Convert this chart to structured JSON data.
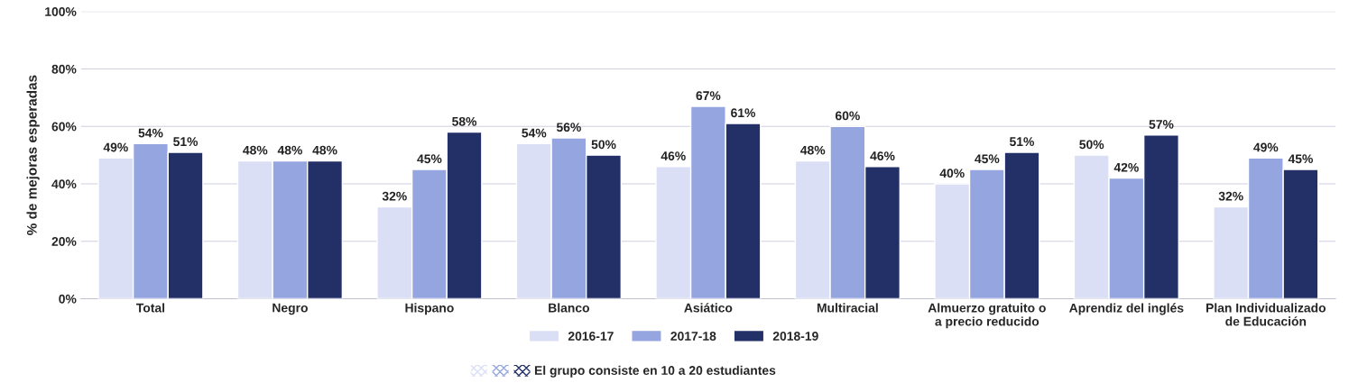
{
  "chart_data": {
    "type": "bar",
    "ylabel": "% de mejoras esperadas",
    "categories": [
      "Total",
      "Negro",
      "Hispano",
      "Blanco",
      "Asiático",
      "Multiracial",
      "Almuerzo gratuito o\na precio reducido",
      "Aprendiz del inglés",
      "Plan Individualizado\nde Educación"
    ],
    "series": [
      {
        "name": "2016-17",
        "color": "#dadff5",
        "values": [
          49,
          48,
          32,
          54,
          46,
          48,
          40,
          50,
          32
        ],
        "value_labels": [
          "49%",
          "48%",
          "32%",
          "54%",
          "46%",
          "48%",
          "40%",
          "50%",
          "32%"
        ]
      },
      {
        "name": "2017-18",
        "color": "#95a5e0",
        "values": [
          54,
          48,
          45,
          56,
          67,
          60,
          45,
          42,
          49
        ],
        "value_labels": [
          "54%",
          "48%",
          "45%",
          "56%",
          "67%",
          "60%",
          "45%",
          "42%",
          "49%"
        ]
      },
      {
        "name": "2018-19",
        "color": "#233068",
        "values": [
          51,
          48,
          58,
          50,
          61,
          46,
          51,
          57,
          45
        ],
        "value_labels": [
          "51%",
          "48%",
          "58%",
          "50%",
          "61%",
          "46%",
          "51%",
          "57%",
          "45%"
        ]
      }
    ],
    "ylim": [
      0,
      100
    ],
    "yticks": [
      {
        "value": 0,
        "label": "0%"
      },
      {
        "value": 20,
        "label": "20%"
      },
      {
        "value": 40,
        "label": "40%"
      },
      {
        "value": 60,
        "label": "60%"
      },
      {
        "value": 80,
        "label": "80%"
      },
      {
        "value": 100,
        "label": "100%"
      }
    ],
    "grid": "y",
    "legend": "bottom",
    "annotations": [
      "El grupo consiste en 10 a 20 estudiantes"
    ]
  }
}
